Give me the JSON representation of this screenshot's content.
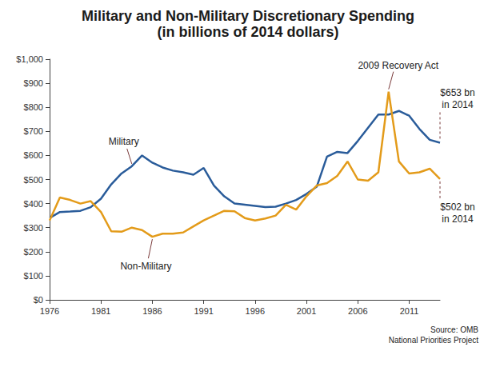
{
  "chart_data": {
    "type": "line",
    "title": "Military and Non-Military Discretionary Spending",
    "subtitle": "(in billions of 2014 dollars)",
    "x": [
      1976,
      1977,
      1978,
      1979,
      1980,
      1981,
      1982,
      1983,
      1984,
      1985,
      1986,
      1987,
      1988,
      1989,
      1990,
      1991,
      1992,
      1993,
      1994,
      1995,
      1996,
      1997,
      1998,
      1999,
      2000,
      2001,
      2002,
      2003,
      2004,
      2005,
      2006,
      2007,
      2008,
      2009,
      2010,
      2011,
      2012,
      2013,
      2014
    ],
    "series": [
      {
        "name": "Military",
        "color": "#2a5c9a",
        "values": [
          340,
          365,
          367,
          370,
          385,
          420,
          480,
          525,
          555,
          600,
          570,
          550,
          537,
          530,
          520,
          548,
          475,
          430,
          400,
          395,
          390,
          385,
          387,
          400,
          415,
          440,
          470,
          595,
          615,
          610,
          660,
          715,
          770,
          770,
          785,
          765,
          710,
          665,
          653
        ]
      },
      {
        "name": "Non-Military",
        "color": "#e39b1a",
        "values": [
          330,
          425,
          415,
          400,
          410,
          365,
          285,
          283,
          300,
          290,
          262,
          275,
          275,
          280,
          305,
          330,
          350,
          370,
          368,
          340,
          330,
          338,
          350,
          395,
          375,
          430,
          475,
          485,
          515,
          575,
          500,
          495,
          530,
          865,
          575,
          525,
          530,
          545,
          502
        ]
      }
    ],
    "xlim": [
      1976,
      2014
    ],
    "xticks": [
      1976,
      1981,
      1986,
      1991,
      1996,
      2001,
      2006,
      2011
    ],
    "ylim": [
      0,
      1000
    ],
    "yticks": [
      {
        "value": 0,
        "label": "$0"
      },
      {
        "value": 100,
        "label": "$100"
      },
      {
        "value": 200,
        "label": "$200"
      },
      {
        "value": 300,
        "label": "$300"
      },
      {
        "value": 400,
        "label": "$400"
      },
      {
        "value": 500,
        "label": "$500"
      },
      {
        "value": 600,
        "label": "$600"
      },
      {
        "value": 700,
        "label": "$700"
      },
      {
        "value": 800,
        "label": "$800"
      },
      {
        "value": 900,
        "label": "$900"
      },
      {
        "value": 1000,
        "label": "$1,000"
      }
    ],
    "grid": false,
    "annotations": [
      "2009 Recovery Act",
      "$653 bn\nin 2014",
      "$502 bn\nin 2014"
    ],
    "source": [
      "Source: OMB",
      "National Priorities Project"
    ]
  }
}
